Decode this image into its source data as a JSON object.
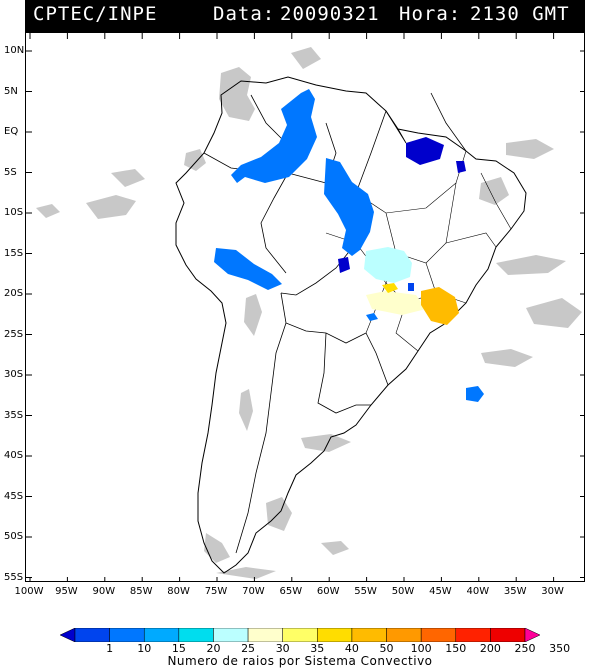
{
  "header": {
    "source": "CPTEC/INPE",
    "date_label": "Data:",
    "date_value": "20090321",
    "time_label": "Hora:",
    "time_value": "2130 GMT"
  },
  "map": {
    "lat_labels": [
      "10N",
      "5N",
      "EQ",
      "5S",
      "10S",
      "15S",
      "20S",
      "25S",
      "30S",
      "35S",
      "40S",
      "45S",
      "50S",
      "55S"
    ],
    "lon_labels": [
      "100W",
      "95W",
      "90W",
      "85W",
      "80W",
      "75W",
      "70W",
      "65W",
      "60W",
      "55W",
      "50W",
      "45W",
      "40W",
      "35W",
      "30W"
    ],
    "land_color": "#ffffff",
    "border_color": "#000000",
    "cloud_color": "#c8c8c8"
  },
  "legend": {
    "values": [
      "1",
      "10",
      "15",
      "20",
      "25",
      "30",
      "35",
      "40",
      "50",
      "100",
      "150",
      "200",
      "250",
      "350"
    ],
    "colors": [
      "#0000cc",
      "#0044ee",
      "#0077ff",
      "#00aaff",
      "#00ddee",
      "#bbffff",
      "#ffffcc",
      "#ffff66",
      "#ffdd00",
      "#ffbb00",
      "#ff9900",
      "#ff6600",
      "#ff2200",
      "#ee0000",
      "#ff0099"
    ],
    "caption": "Numero de raios por Sistema Convectivo"
  }
}
